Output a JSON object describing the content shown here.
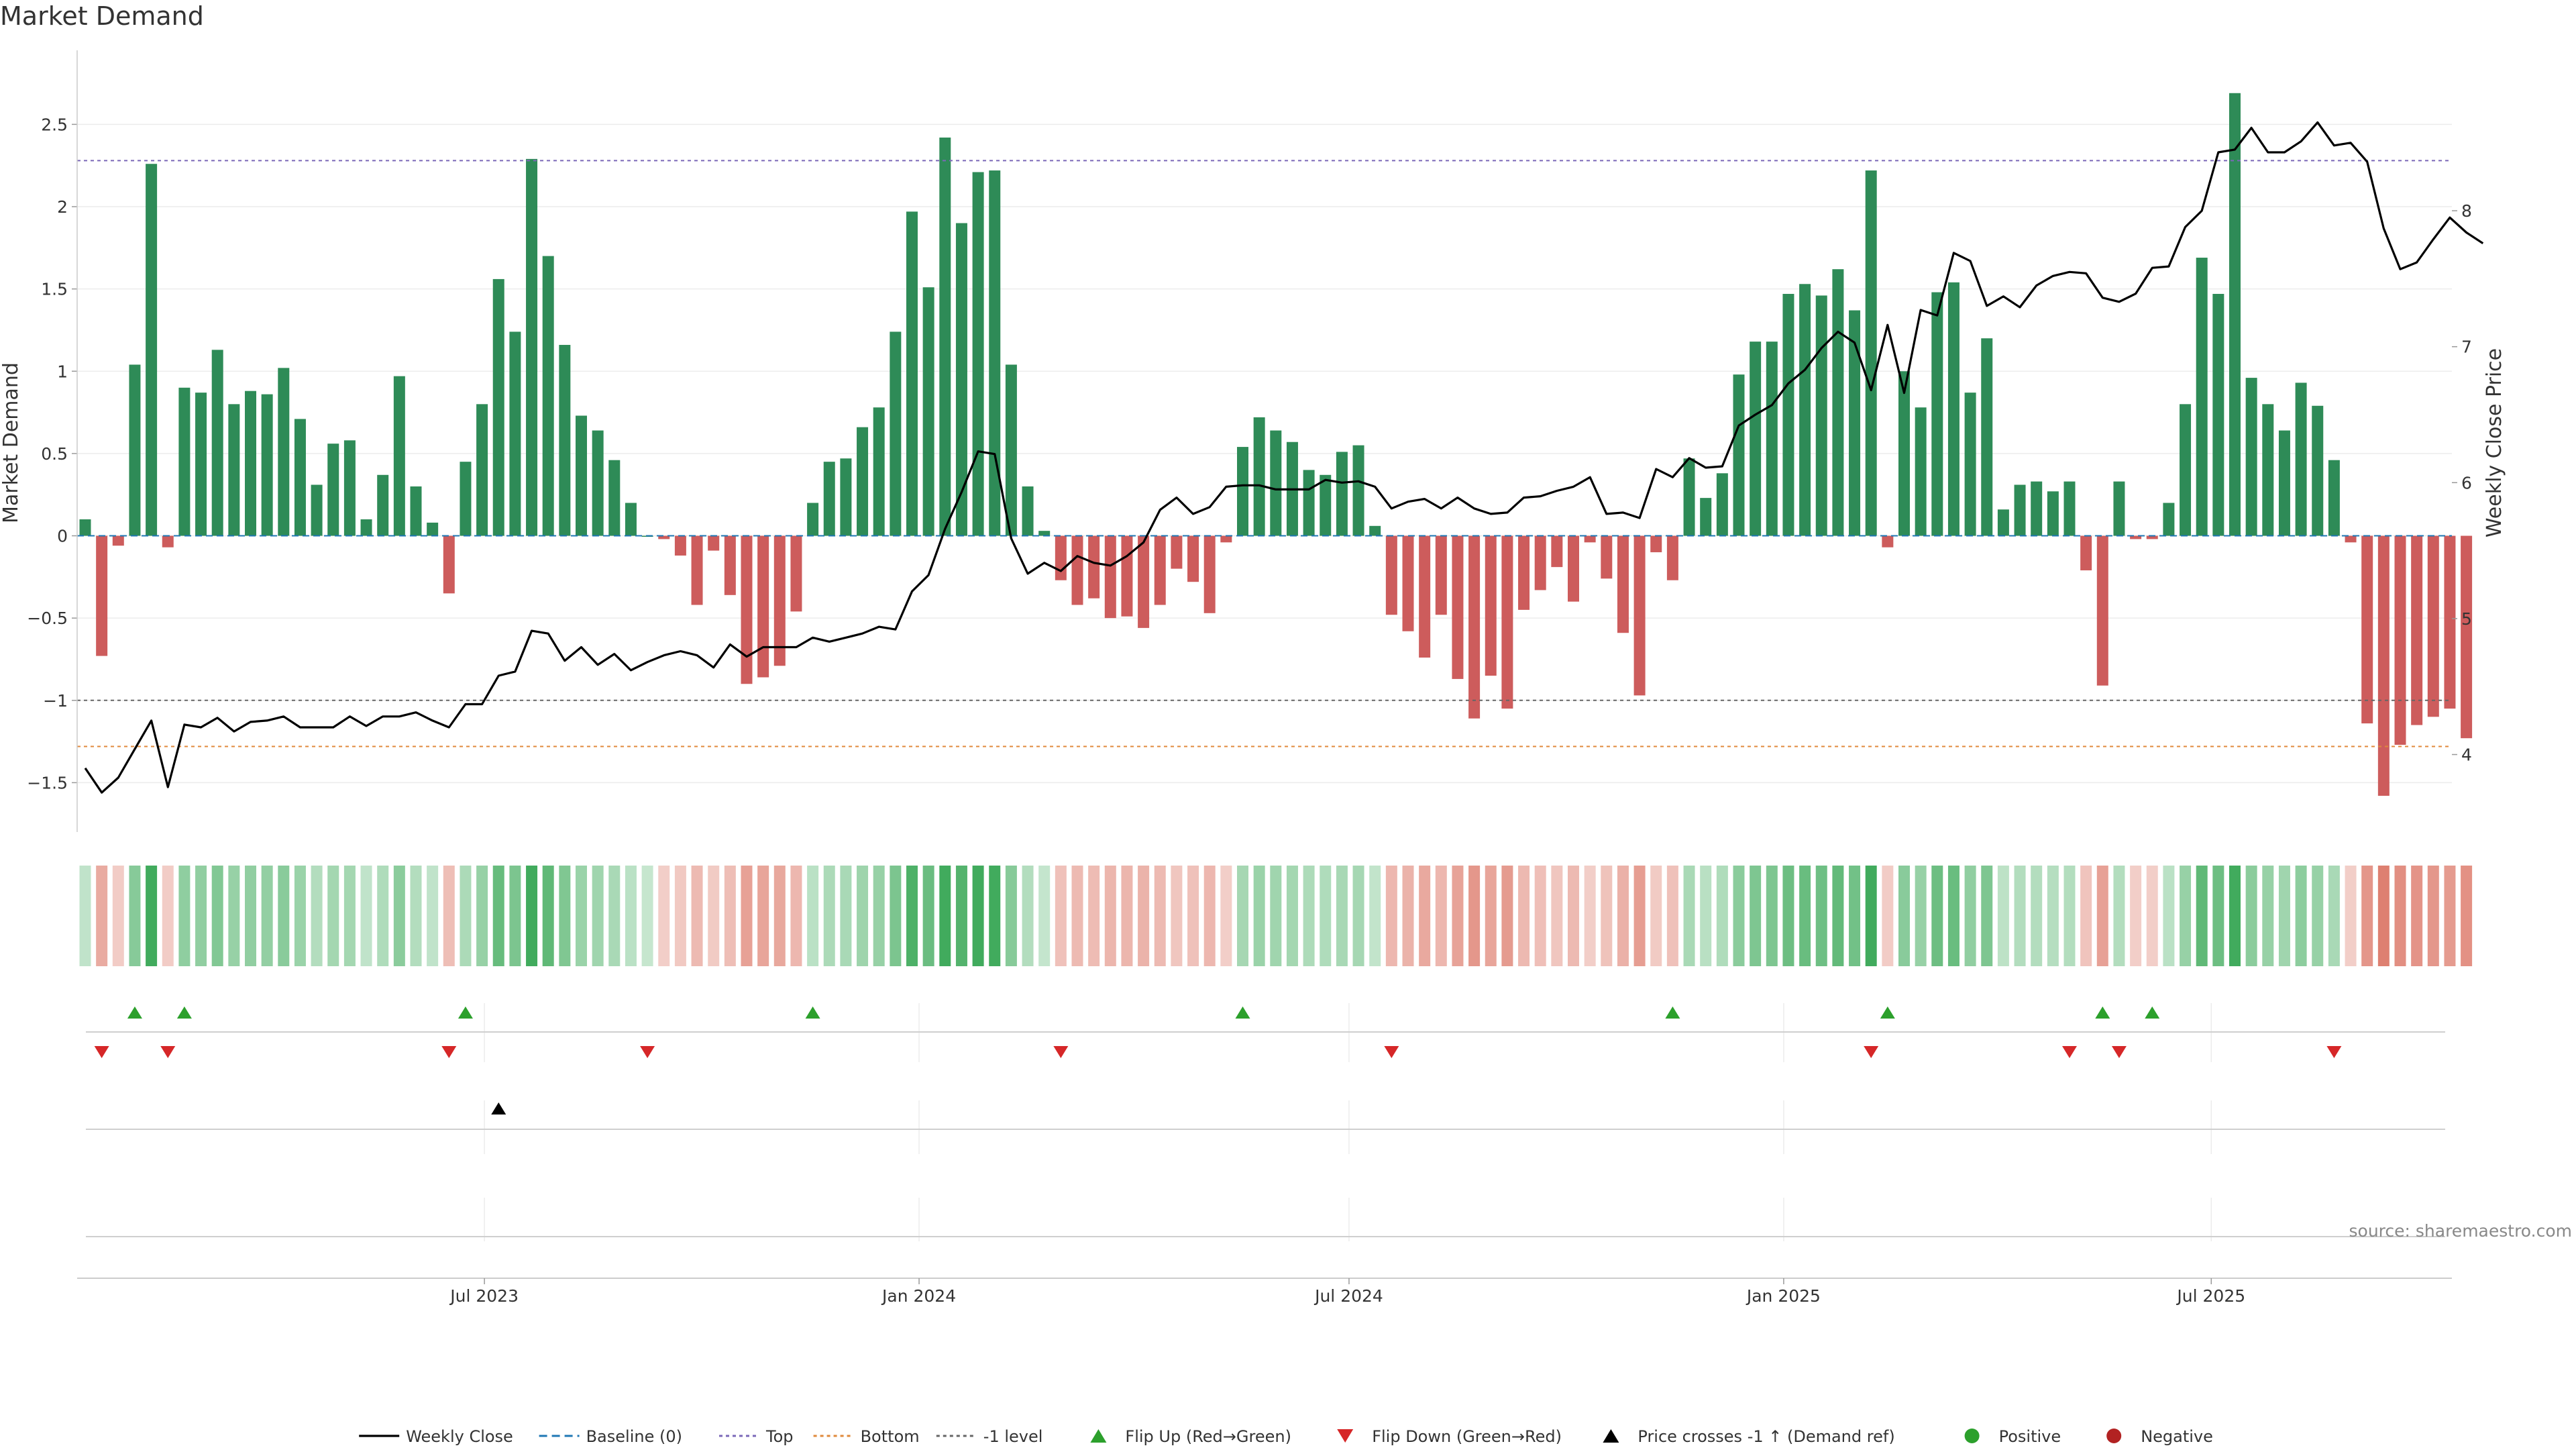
{
  "chart_data": {
    "type": "bar",
    "title": "Market Demand",
    "ylabel_left": "Market Demand",
    "ylabel_right": "Weekly Close Price",
    "ylim_left": [
      -1.8,
      2.95
    ],
    "yticks_left": [
      2.5,
      2,
      1.5,
      1,
      0.5,
      0,
      -0.5,
      -1,
      -1.5
    ],
    "ytick_labels_left": [
      "2.5",
      "2",
      "1.5",
      "1",
      "0.5",
      "0",
      "−0.5",
      "−1",
      "−1.5"
    ],
    "ylim_right": [
      3.43,
      9.18
    ],
    "yticks_right": [
      8,
      7,
      6,
      5,
      4
    ],
    "ytick_labels_right": [
      "8",
      "7",
      "6",
      "5",
      "4"
    ],
    "x_start": "2023-01-13",
    "x_ticks": [
      {
        "date": "2023-07-01",
        "label": "Jul 2023"
      },
      {
        "date": "2024-01-01",
        "label": "Jan 2024"
      },
      {
        "date": "2024-07-01",
        "label": "Jul 2024"
      },
      {
        "date": "2025-01-01",
        "label": "Jan 2025"
      },
      {
        "date": "2025-07-01",
        "label": "Jul 2025"
      }
    ],
    "reference_lines": [
      {
        "name": "Top",
        "value": 2.28,
        "color": "#7b68b8"
      },
      {
        "name": "Bottom",
        "value": -1.28,
        "color": "#e08a3c"
      },
      {
        "name": "-1 level",
        "value": -1.0,
        "color": "#666666"
      }
    ],
    "demand": [
      0.1,
      -0.73,
      -0.06,
      1.04,
      2.26,
      -0.07,
      0.9,
      0.87,
      1.13,
      0.8,
      0.88,
      0.86,
      1.02,
      0.71,
      0.31,
      0.56,
      0.58,
      0.1,
      0.37,
      0.97,
      0.3,
      0.08,
      -0.35,
      0.45,
      0.8,
      1.56,
      1.24,
      2.29,
      1.7,
      1.16,
      0.73,
      0.64,
      0.46,
      0.2,
      0,
      -0.02,
      -0.12,
      -0.42,
      -0.09,
      -0.36,
      -0.9,
      -0.86,
      -0.79,
      -0.46,
      0.2,
      0.45,
      0.47,
      0.66,
      0.78,
      1.24,
      1.97,
      1.51,
      2.42,
      1.9,
      2.21,
      2.22,
      1.04,
      0.3,
      0.03,
      -0.27,
      -0.42,
      -0.38,
      -0.5,
      -0.49,
      -0.56,
      -0.42,
      -0.2,
      -0.28,
      -0.47,
      -0.04,
      0.54,
      0.72,
      0.64,
      0.57,
      0.4,
      0.37,
      0.51,
      0.55,
      0.06,
      -0.48,
      -0.58,
      -0.74,
      -0.48,
      -0.87,
      -1.11,
      -0.85,
      -1.05,
      -0.45,
      -0.33,
      -0.19,
      -0.4,
      -0.04,
      -0.26,
      -0.59,
      -0.97,
      -0.1,
      -0.27,
      0.47,
      0.23,
      0.38,
      0.98,
      1.18,
      1.18,
      1.47,
      1.53,
      1.46,
      1.62,
      1.37,
      2.22,
      -0.07,
      1.0,
      0.78,
      1.48,
      1.54,
      0.87,
      1.2,
      0.16,
      0.31,
      0.33,
      0.27,
      0.33,
      -0.21,
      -0.91,
      0.33,
      -0.02,
      -0.02,
      0.2,
      0.8,
      1.69,
      1.47,
      2.69,
      0.96,
      0.8,
      0.64,
      0.93,
      0.79,
      0.46,
      -0.04,
      -1.14,
      -1.58,
      -1.27,
      -1.15,
      -1.1,
      -1.05,
      -1.23
    ],
    "weekly_close": [
      3.9,
      3.72,
      3.83,
      4.04,
      4.25,
      3.76,
      4.22,
      4.2,
      4.27,
      4.17,
      4.24,
      4.25,
      4.28,
      4.2,
      4.2,
      4.2,
      4.28,
      4.21,
      4.28,
      4.28,
      4.31,
      4.25,
      4.2,
      4.37,
      4.37,
      4.58,
      4.61,
      4.91,
      4.89,
      4.69,
      4.79,
      4.66,
      4.74,
      4.62,
      4.68,
      4.73,
      4.76,
      4.73,
      4.64,
      4.81,
      4.72,
      4.79,
      4.79,
      4.79,
      4.86,
      4.83,
      4.86,
      4.89,
      4.94,
      4.92,
      5.2,
      5.32,
      5.66,
      5.93,
      6.23,
      6.21,
      5.59,
      5.33,
      5.41,
      5.35,
      5.46,
      5.41,
      5.39,
      5.46,
      5.56,
      5.8,
      5.89,
      5.77,
      5.82,
      5.97,
      5.98,
      5.98,
      5.95,
      5.95,
      5.95,
      6.02,
      6.0,
      6.01,
      5.97,
      5.81,
      5.86,
      5.88,
      5.81,
      5.89,
      5.81,
      5.77,
      5.78,
      5.89,
      5.9,
      5.94,
      5.97,
      6.04,
      5.77,
      5.78,
      5.74,
      6.1,
      6.04,
      6.18,
      6.11,
      6.12,
      6.42,
      6.5,
      6.57,
      6.73,
      6.83,
      6.99,
      7.11,
      7.03,
      6.68,
      7.16,
      6.66,
      7.27,
      7.23,
      7.69,
      7.63,
      7.3,
      7.37,
      7.29,
      7.45,
      7.52,
      7.55,
      7.54,
      7.36,
      7.33,
      7.39,
      7.58,
      7.59,
      7.88,
      8.0,
      8.43,
      8.45,
      8.61,
      8.43,
      8.43,
      8.51,
      8.65,
      8.48,
      8.5,
      8.36,
      7.87,
      7.57,
      7.62,
      7.79,
      7.95,
      7.84,
      7.76
    ],
    "flip_up_index": [
      3,
      6,
      23,
      44,
      70,
      96,
      109,
      122,
      125
    ],
    "flip_down_index": [
      1,
      5,
      22,
      34,
      59,
      79,
      108,
      120,
      123,
      136
    ],
    "price_cross_index": [
      25
    ],
    "series": [
      {
        "name": "Weekly Close",
        "color": "#000000"
      },
      {
        "name": "Baseline (0)",
        "color": "#1f77b4"
      },
      {
        "name": "Top",
        "color": "#7b68b8"
      },
      {
        "name": "Bottom",
        "color": "#e08a3c"
      },
      {
        "name": "-1 level",
        "color": "#666666"
      },
      {
        "name": "Flip Up (Red→Green)",
        "color": "#2ca02c"
      },
      {
        "name": "Flip Down (Green→Red)",
        "color": "#d62728"
      },
      {
        "name": "Price crosses -1 ↑ (Demand ref)",
        "color": "#000000"
      },
      {
        "name": "Positive",
        "color": "#2ca02c"
      },
      {
        "name": "Negative",
        "color": "#b22222"
      }
    ],
    "colors": {
      "positive_bar": "#2e8b57",
      "negative_bar": "#cd5c5c"
    },
    "legend_placement": "bottom-center",
    "grid": true
  },
  "source": "source: sharemaestro.com"
}
